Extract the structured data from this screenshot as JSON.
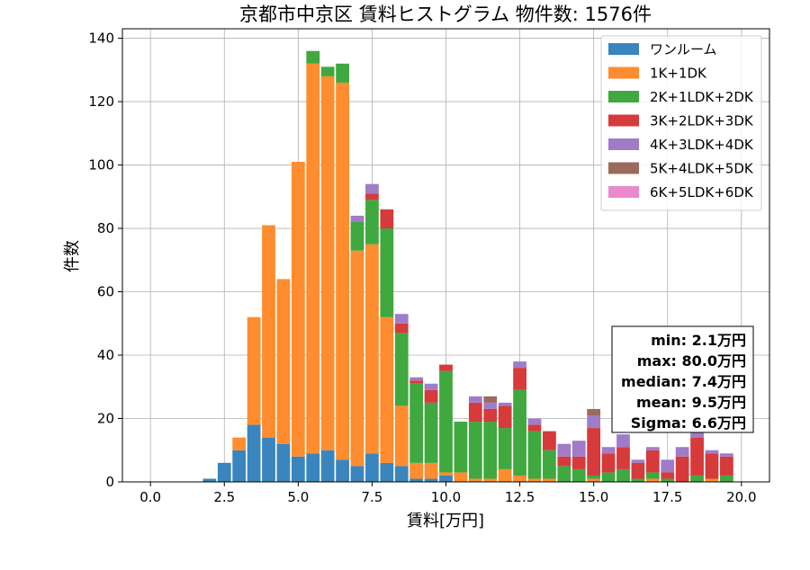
{
  "chart_data": {
    "type": "bar",
    "stacked": true,
    "title": "京都市中京区 賃料ヒストグラム  物件数: 1576件",
    "xlabel": "賃料[万円]",
    "ylabel": "件数",
    "xlim": [
      -0.95,
      20.95
    ],
    "ylim": [
      0,
      143
    ],
    "bin_width": 0.5,
    "x_ticks": [
      0.0,
      2.5,
      5.0,
      7.5,
      10.0,
      12.5,
      15.0,
      17.5,
      20.0
    ],
    "y_ticks": [
      0,
      20,
      40,
      60,
      80,
      100,
      120,
      140
    ],
    "grid": true,
    "legend_position": "top-right",
    "colors": [
      "#3a85bd",
      "#ff8c2e",
      "#3fa83f",
      "#d63a3a",
      "#a07cc8",
      "#9b6a5e",
      "#e88acb"
    ],
    "x": [
      0.0,
      0.5,
      1.0,
      1.5,
      2.0,
      2.5,
      3.0,
      3.5,
      4.0,
      4.5,
      5.0,
      5.5,
      6.0,
      6.5,
      7.0,
      7.5,
      8.0,
      8.5,
      9.0,
      9.5,
      10.0,
      10.5,
      11.0,
      11.5,
      12.0,
      12.5,
      13.0,
      13.5,
      14.0,
      14.5,
      15.0,
      15.5,
      16.0,
      16.5,
      17.0,
      17.5,
      18.0,
      18.5,
      19.0,
      19.5
    ],
    "series": [
      {
        "name": "ワンルーム",
        "values": [
          0,
          0,
          0,
          0,
          1,
          6,
          10,
          18,
          14,
          12,
          8,
          9,
          10,
          7,
          5,
          9,
          6,
          5,
          1,
          1,
          2,
          0,
          0,
          0,
          0,
          0,
          0,
          0,
          0,
          0,
          0,
          0,
          0,
          0,
          0,
          0,
          0,
          0,
          0,
          0
        ]
      },
      {
        "name": "1K+1DK",
        "values": [
          0,
          0,
          0,
          0,
          0,
          0,
          4,
          34,
          67,
          52,
          93,
          123,
          118,
          119,
          68,
          66,
          46,
          19,
          5,
          5,
          1,
          3,
          1,
          1,
          4,
          2,
          1,
          1,
          0,
          0,
          1,
          0,
          0,
          0,
          1,
          0,
          0,
          0,
          1,
          0
        ]
      },
      {
        "name": "2K+1LDK+2DK",
        "values": [
          0,
          0,
          0,
          0,
          0,
          0,
          0,
          0,
          0,
          0,
          0,
          4,
          3,
          6,
          9,
          14,
          28,
          23,
          25,
          19,
          32,
          16,
          18,
          18,
          13,
          27,
          15,
          9,
          5,
          4,
          1,
          3,
          4,
          1,
          2,
          1,
          0,
          2,
          0,
          2
        ]
      },
      {
        "name": "3K+2LDK+3DK",
        "values": [
          0,
          0,
          0,
          0,
          0,
          0,
          0,
          0,
          0,
          0,
          0,
          0,
          0,
          0,
          0,
          2,
          6,
          3,
          1,
          4,
          2,
          0,
          6,
          4,
          7,
          7,
          2,
          6,
          3,
          4,
          15,
          6,
          7,
          5,
          7,
          2,
          8,
          12,
          8,
          6
        ]
      },
      {
        "name": "4K+3LDK+4DK",
        "values": [
          0,
          0,
          0,
          0,
          0,
          0,
          0,
          0,
          0,
          0,
          0,
          0,
          0,
          0,
          2,
          3,
          0,
          3,
          1,
          2,
          0,
          0,
          2,
          2,
          1,
          2,
          2,
          0,
          4,
          5,
          4,
          2,
          4,
          1,
          1,
          4,
          3,
          2,
          1,
          1
        ]
      },
      {
        "name": "5K+4LDK+5DK",
        "values": [
          0,
          0,
          0,
          0,
          0,
          0,
          0,
          0,
          0,
          0,
          0,
          0,
          0,
          0,
          0,
          0,
          0,
          0,
          0,
          0,
          0,
          0,
          0,
          2,
          0,
          0,
          0,
          0,
          0,
          0,
          2,
          0,
          0,
          0,
          0,
          0,
          0,
          0,
          0,
          0
        ]
      },
      {
        "name": "6K+5LDK+6DK",
        "values": [
          0,
          0,
          0,
          0,
          0,
          0,
          0,
          0,
          0,
          0,
          0,
          0,
          0,
          0,
          0,
          0,
          0,
          0,
          0,
          0,
          0,
          0,
          0,
          0,
          0,
          0,
          0,
          0,
          0,
          0,
          0,
          0,
          0,
          0,
          0,
          0,
          0,
          0,
          0,
          0
        ]
      }
    ],
    "stats_box": [
      "min: 2.1万円",
      "max: 80.0万円",
      "median: 7.4万円",
      "mean: 9.5万円",
      "Sigma: 6.6万円"
    ]
  }
}
